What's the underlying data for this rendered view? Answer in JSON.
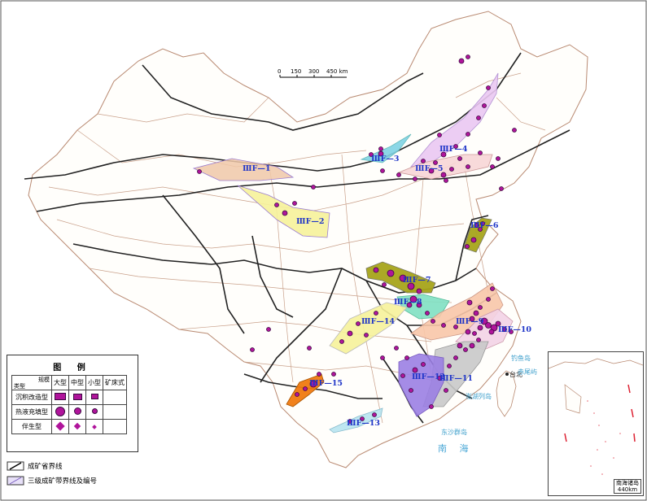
{
  "scale": {
    "ticks": [
      "0",
      "150",
      "300",
      "450 km"
    ]
  },
  "zones": [
    {
      "id": "f1",
      "label": "ⅢF—1",
      "color": "#f0c8a8"
    },
    {
      "id": "f2",
      "label": "ⅢF—2",
      "color": "#f6f29a"
    },
    {
      "id": "f3",
      "label": "ⅢF—3",
      "color": "#7fd3e3"
    },
    {
      "id": "f4",
      "label": "ⅢF—4",
      "color": "#eac8f2"
    },
    {
      "id": "f5",
      "label": "ⅢF—5",
      "color": "#f7d6d6"
    },
    {
      "id": "f6",
      "label": "ⅢF—6",
      "color": "#a6a41a"
    },
    {
      "id": "f7",
      "label": "ⅢF—7",
      "color": "#a6a41a"
    },
    {
      "id": "f8",
      "label": "ⅢF—8",
      "color": "#7fe0c2"
    },
    {
      "id": "f9",
      "label": "ⅢF—9",
      "color": "#f8c6a8"
    },
    {
      "id": "f10",
      "label": "ⅢF—10",
      "color": "#f3d3e6"
    },
    {
      "id": "f11",
      "label": "ⅢF—11",
      "color": "#c9c9c9"
    },
    {
      "id": "f12",
      "label": "ⅢF—12",
      "color": "#9b7fe3"
    },
    {
      "id": "f13",
      "label": "ⅢF—13",
      "color": "#b8e4f0"
    },
    {
      "id": "f14",
      "label": "ⅢF—14",
      "color": "#f6f29a"
    },
    {
      "id": "f15",
      "label": "ⅢF—15",
      "color": "#f07a10"
    }
  ],
  "places": {
    "taibei": "台北",
    "dongsha": "东沙群岛",
    "diaoyu": "钓鱼岛",
    "chiwei": "赤尾屿",
    "penghu": "澎湖列岛"
  },
  "seas": {
    "nanhai": "南 海"
  },
  "legend": {
    "title": "图 例",
    "corner_top": "规模",
    "corner_bottom": "类型",
    "cols": [
      "大型",
      "中型",
      "小型",
      "矿床式"
    ],
    "rows": [
      "沉积改造型",
      "热液充填型",
      "伴生型"
    ],
    "symbol_color": "#b0149b"
  },
  "keys": {
    "province_boundary": "成矿省界线",
    "belt_boundary": "三级成矿带界线及编号"
  },
  "inset": {
    "label_top": "南海诸岛",
    "label_bottom": "440km"
  }
}
